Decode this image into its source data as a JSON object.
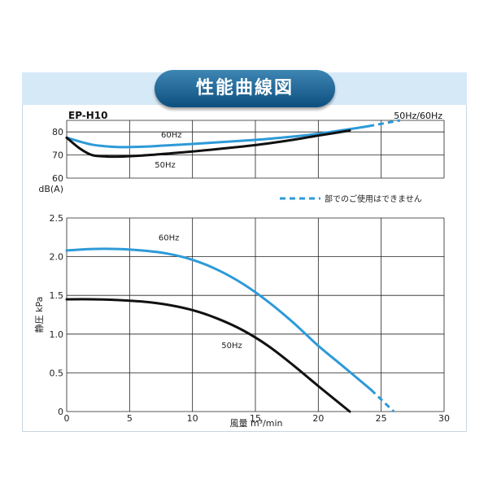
{
  "title": "性能曲線図",
  "model": "EP-H10",
  "freq_label": "50Hz/60Hz",
  "colors": {
    "hz60": "#2d9ad8",
    "hz50": "#111111",
    "grid": "#222222",
    "title_band": "#d6e9f7"
  },
  "chart_data": [
    {
      "type": "line",
      "name": "noise",
      "ylabel": "dB(A)",
      "xlim": [
        0,
        30
      ],
      "ylim": [
        60,
        85
      ],
      "yticks": [
        60,
        70,
        80
      ],
      "grid": true,
      "series": [
        {
          "name": "60Hz",
          "color": "#2d9ad8",
          "x": [
            0,
            2,
            4,
            6,
            8,
            10,
            12,
            14,
            16,
            18,
            20,
            22,
            24
          ],
          "y": [
            77.5,
            74.5,
            73.5,
            73.6,
            74.2,
            74.8,
            75.5,
            76.2,
            77,
            78,
            79.2,
            80.8,
            82.5
          ]
        },
        {
          "name": "50Hz",
          "color": "#111111",
          "x": [
            0,
            1,
            2,
            3,
            4,
            6,
            8,
            10,
            12,
            14,
            16,
            18,
            20,
            22.5
          ],
          "y": [
            77.5,
            73,
            70,
            69.4,
            69.3,
            69.8,
            70.6,
            71.5,
            72.6,
            73.7,
            75,
            76.6,
            78.4,
            80.6
          ]
        }
      ],
      "dashed_segments": [
        {
          "series": "60Hz",
          "x": [
            24,
            26.5
          ],
          "y": [
            82.5,
            85
          ]
        }
      ],
      "annotations": [
        "60Hz",
        "50Hz"
      ]
    },
    {
      "type": "line",
      "name": "static-pressure",
      "xlabel": "風量 m³/min",
      "ylabel": "静圧 kPa",
      "xlim": [
        0,
        30
      ],
      "ylim": [
        0,
        2.5
      ],
      "xticks": [
        0,
        5,
        10,
        15,
        20,
        25,
        30
      ],
      "yticks": [
        0,
        0.5,
        1.0,
        1.5,
        2.0,
        2.5
      ],
      "ytick_labels": [
        "0",
        "0.5",
        "1.0",
        "1.5",
        "2.0",
        "2.5"
      ],
      "grid": true,
      "series": [
        {
          "name": "60Hz",
          "color": "#2d9ad8",
          "x": [
            0,
            2,
            4,
            6,
            8,
            10,
            12,
            14,
            16,
            18,
            20,
            22,
            24.2
          ],
          "y": [
            2.08,
            2.1,
            2.1,
            2.08,
            2.04,
            1.96,
            1.83,
            1.65,
            1.42,
            1.15,
            0.85,
            0.58,
            0.28
          ]
        },
        {
          "name": "50Hz",
          "color": "#111111",
          "x": [
            0,
            2,
            4,
            6,
            8,
            10,
            12,
            14,
            16,
            18,
            20,
            22.5
          ],
          "y": [
            1.45,
            1.45,
            1.44,
            1.42,
            1.38,
            1.31,
            1.2,
            1.05,
            0.85,
            0.6,
            0.33,
            0.0
          ]
        }
      ],
      "dashed_segments": [
        {
          "series": "60Hz",
          "x": [
            24.2,
            26
          ],
          "y": [
            0.28,
            0.0
          ]
        }
      ],
      "annotations": [
        "60Hz",
        "50Hz"
      ]
    }
  ],
  "legend_note": "部でのご使用はできません"
}
